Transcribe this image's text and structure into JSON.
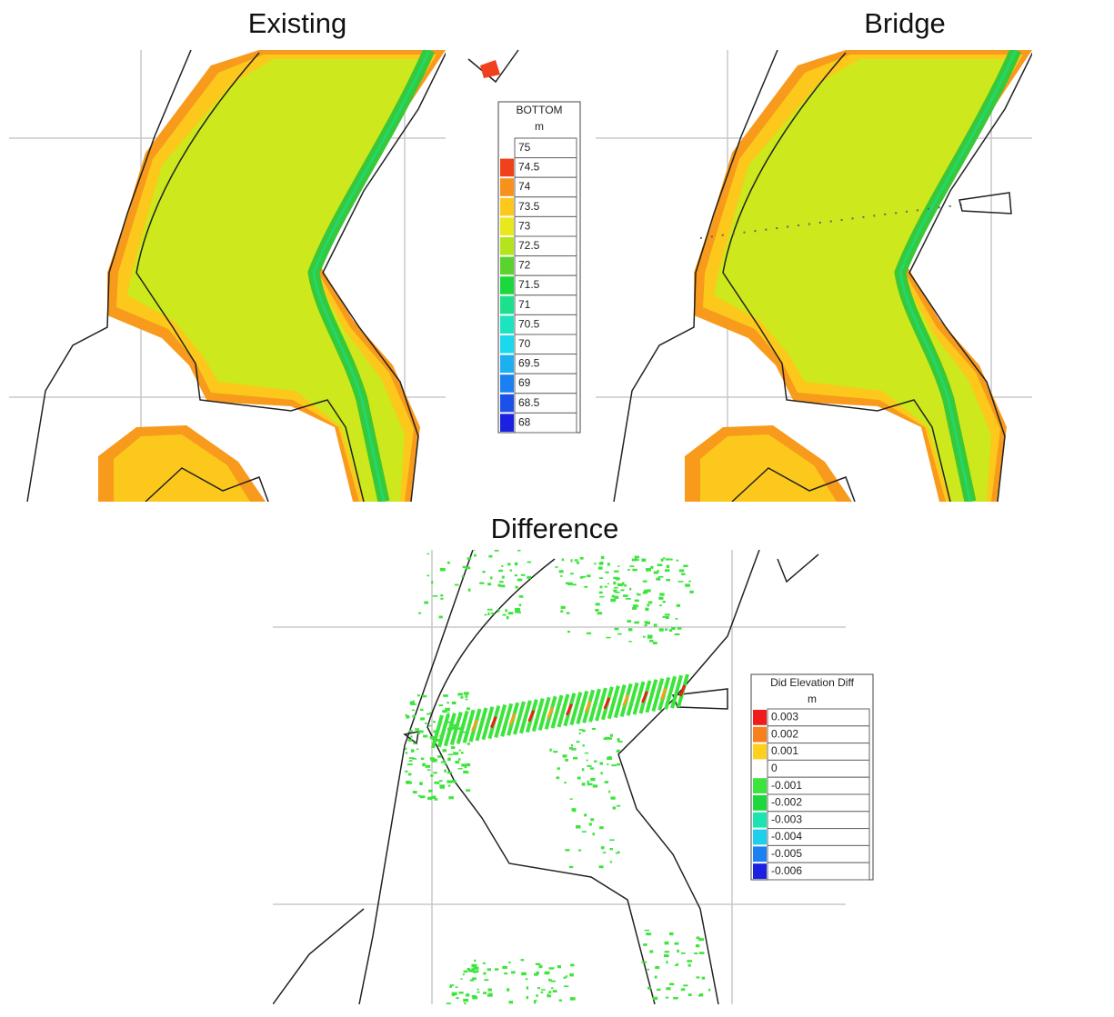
{
  "panels": [
    {
      "title": "Existing"
    },
    {
      "title": "Bridge"
    },
    {
      "title": "Difference"
    }
  ],
  "legends": [
    {
      "title": "BOTTOM",
      "unit": "m",
      "items": [
        {
          "label": "75",
          "color": "#ffffff"
        },
        {
          "label": "74.5",
          "color": "#f0401c"
        },
        {
          "label": "74",
          "color": "#f8901c"
        },
        {
          "label": "73.5",
          "color": "#fcc81c"
        },
        {
          "label": "73",
          "color": "#e8e81c"
        },
        {
          "label": "72.5",
          "color": "#b4e41c"
        },
        {
          "label": "72",
          "color": "#5cd22c"
        },
        {
          "label": "71.5",
          "color": "#1cd83c"
        },
        {
          "label": "71",
          "color": "#1ce08c"
        },
        {
          "label": "70.5",
          "color": "#1ce4c0"
        },
        {
          "label": "70",
          "color": "#1cd8ec"
        },
        {
          "label": "69.5",
          "color": "#1cb0f0"
        },
        {
          "label": "69",
          "color": "#1c80f0"
        },
        {
          "label": "68.5",
          "color": "#1c50e8"
        },
        {
          "label": "68",
          "color": "#1c20e0"
        }
      ]
    },
    {
      "title": "Did Elevation Diff",
      "unit": "m",
      "items": [
        {
          "label": "0.003",
          "color": "#f01c1c"
        },
        {
          "label": "0.002",
          "color": "#f8801c"
        },
        {
          "label": "0.001",
          "color": "#fcd01c"
        },
        {
          "label": "0",
          "color": "#ffffff"
        },
        {
          "label": "-0.001",
          "color": "#3ce43c"
        },
        {
          "label": "-0.002",
          "color": "#1cd83c"
        },
        {
          "label": "-0.003",
          "color": "#1ce4b0"
        },
        {
          "label": "-0.004",
          "color": "#1cd0ec"
        },
        {
          "label": "-0.005",
          "color": "#1c80f0"
        },
        {
          "label": "-0.006",
          "color": "#1c20e0"
        }
      ]
    }
  ]
}
